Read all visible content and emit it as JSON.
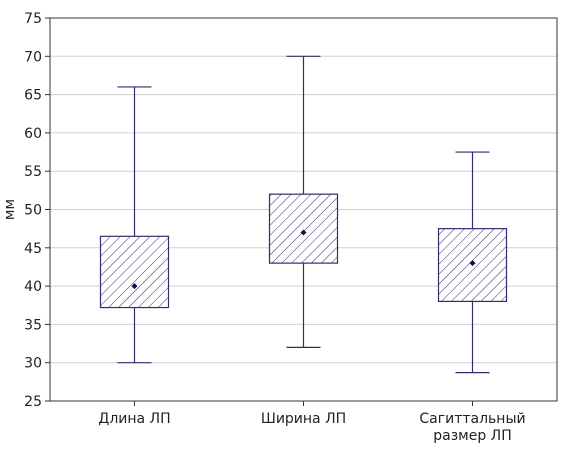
{
  "chart_data": {
    "type": "box",
    "ylabel": "мм",
    "ylim": [
      25,
      75
    ],
    "yticks": [
      25,
      30,
      35,
      40,
      45,
      50,
      55,
      60,
      65,
      70,
      75
    ],
    "grid": true,
    "categories": [
      [
        "Длина ЛП"
      ],
      [
        "Ширина ЛП"
      ],
      [
        "Сагиттальный",
        "размер ЛП"
      ]
    ],
    "boxes": [
      {
        "min": 30,
        "q1": 37.2,
        "median": 40,
        "q3": 46.5,
        "max": 66
      },
      {
        "min": 32,
        "q1": 43,
        "median": 47,
        "q3": 52,
        "max": 70
      },
      {
        "min": 28.7,
        "q1": 38,
        "median": 43,
        "q3": 47.5,
        "max": 57.5
      }
    ],
    "colors": {
      "box_stroke": "#2e2e6e",
      "grid": "#d0d0d0",
      "frame": "#333333"
    }
  }
}
